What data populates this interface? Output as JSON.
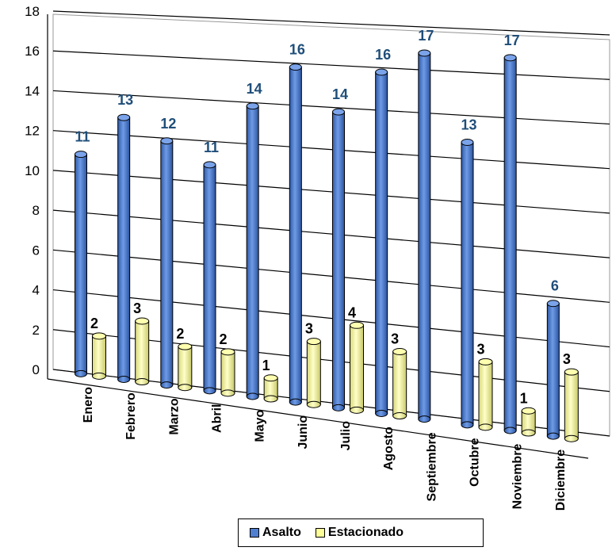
{
  "chart_data": {
    "type": "bar",
    "categories": [
      "Enero",
      "Febrero",
      "Marzo",
      "Abril",
      "Mayo",
      "Junio",
      "Julio",
      "Agosto",
      "Septiembre",
      "Octubre",
      "Noviembre",
      "Diciembre"
    ],
    "series": [
      {
        "name": "Asalto",
        "values": [
          11,
          13,
          12,
          11,
          14,
          16,
          14,
          16,
          17,
          13,
          17,
          6
        ],
        "color": "#4f7fd0"
      },
      {
        "name": "Estacionado",
        "values": [
          2,
          3,
          2,
          2,
          1,
          3,
          4,
          3,
          0,
          3,
          1,
          3
        ],
        "color": "#ffff99"
      }
    ],
    "ylim": [
      0,
      18
    ],
    "yticks": [
      "0",
      "2",
      "4",
      "6",
      "8",
      "10",
      "12",
      "14",
      "16",
      "18"
    ],
    "data_labels": {
      "Asalto": [
        "11",
        "13",
        "12",
        "11",
        "14",
        "16",
        "14",
        "16",
        "17",
        "13",
        "17",
        "6"
      ],
      "Estacionado": [
        "2",
        "3",
        "2",
        "2",
        "1",
        "3",
        "4",
        "3",
        "",
        "3",
        "1",
        "3"
      ]
    },
    "grid": true,
    "legend_position": "bottom-right",
    "style": "3d-cylinder"
  }
}
